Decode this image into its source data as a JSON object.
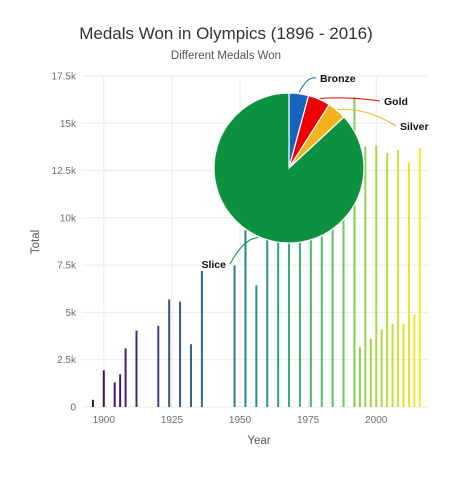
{
  "chart_data": [
    {
      "type": "bar",
      "title": "Medals Won in Olympics (1896 - 2016)",
      "subtitle": "Different Medals Won",
      "xlabel": "Year",
      "ylabel": "Total",
      "xlim": [
        1892,
        2019
      ],
      "ylim": [
        0,
        17500
      ],
      "x_ticks": [
        "1900",
        "1925",
        "1950",
        "1975",
        "2000"
      ],
      "x_tick_values": [
        1900,
        1925,
        1950,
        1975,
        2000
      ],
      "y_ticks": [
        "0",
        "2.5k",
        "5k",
        "7.5k",
        "10k",
        "12.5k",
        "15k",
        "17.5k"
      ],
      "y_tick_values": [
        0,
        2500,
        5000,
        7500,
        10000,
        12500,
        15000,
        17500
      ],
      "grid": true,
      "color_scale": [
        "#440154",
        "#3b528b",
        "#21908c",
        "#5dc863",
        "#fde725"
      ],
      "x": [
        1896,
        1900,
        1904,
        1906,
        1908,
        1912,
        1920,
        1924,
        1928,
        1932,
        1936,
        1948,
        1952,
        1956,
        1960,
        1964,
        1968,
        1972,
        1976,
        1980,
        1984,
        1988,
        1992,
        1994,
        1996,
        1998,
        2000,
        2002,
        2004,
        2006,
        2008,
        2010,
        2012,
        2014,
        2016
      ],
      "values": [
        380,
        1940,
        1300,
        1730,
        3100,
        4040,
        4290,
        5690,
        5570,
        3320,
        7200,
        7480,
        9350,
        6430,
        9250,
        9480,
        9700,
        10600,
        10500,
        9000,
        10450,
        11150,
        16400,
        3160,
        13780,
        3600,
        13820,
        4110,
        13440,
        4380,
        13600,
        4400,
        12920,
        4900,
        13690
      ]
    },
    {
      "type": "pie",
      "labels": [
        "Bronze",
        "Gold",
        "Silver",
        "Slice"
      ],
      "values": [
        4.2,
        4.8,
        4.1,
        86.9
      ],
      "colors": [
        "#1565c0",
        "#ee0000",
        "#f4b21c",
        "#0b9140"
      ]
    }
  ]
}
